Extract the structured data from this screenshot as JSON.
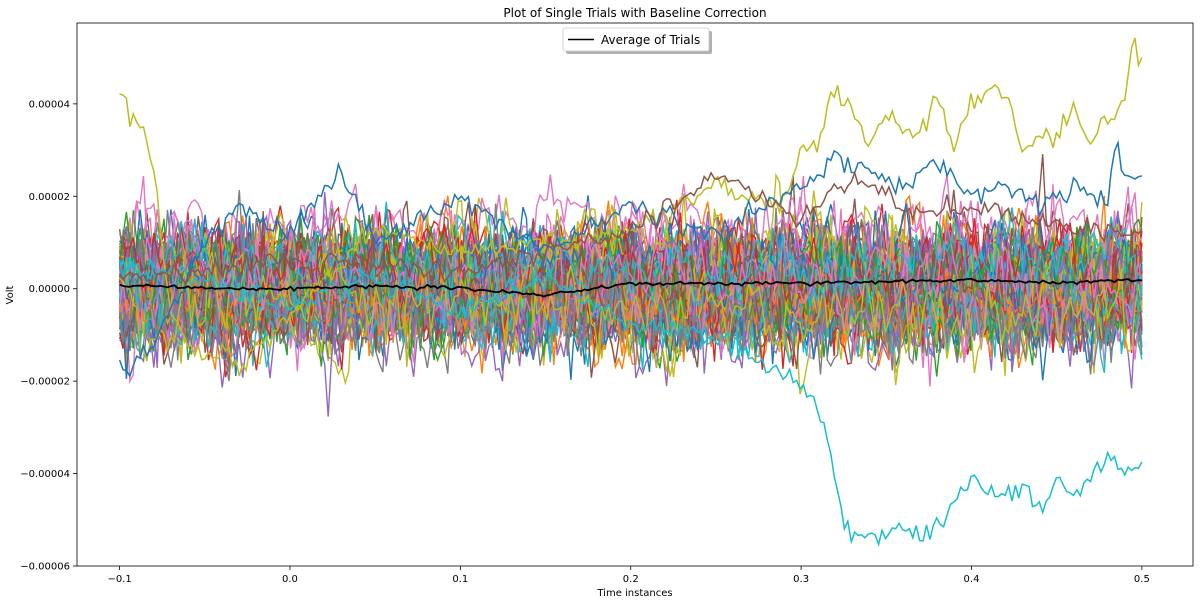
{
  "chart_data": {
    "type": "line",
    "title": "Plot of Single Trials with Baseline Correction",
    "xlabel": "Time instances",
    "ylabel": "Volt",
    "xlim": [
      -0.125,
      0.53
    ],
    "ylim": [
      -6e-05,
      5.75e-05
    ],
    "xticks": [
      -0.1,
      0.0,
      0.1,
      0.2,
      0.3,
      0.4,
      0.5
    ],
    "xtick_labels": [
      "−0.1",
      "0.0",
      "0.1",
      "0.2",
      "0.3",
      "0.4",
      "0.5"
    ],
    "yticks": [
      -6e-05,
      -4e-05,
      -2e-05,
      0.0,
      2e-05,
      4e-05
    ],
    "ytick_labels": [
      "−0.00006",
      "−0.00004",
      "−0.00002",
      "0.00000",
      "0.00002",
      "0.00004"
    ],
    "grid": false,
    "legend": {
      "placement": "upper center",
      "entries": [
        "Average of Trials"
      ]
    },
    "palette": [
      "#1f77b4",
      "#ff7f0e",
      "#2ca02c",
      "#d62728",
      "#9467bd",
      "#8c564b",
      "#e377c2",
      "#7f7f7f",
      "#bcbd22",
      "#17becf"
    ],
    "average_color": "#000000",
    "average_series": {
      "name": "Average of Trials",
      "x": [
        -0.1,
        -0.05,
        0.0,
        0.05,
        0.1,
        0.15,
        0.2,
        0.25,
        0.3,
        0.35,
        0.4,
        0.45,
        0.5
      ],
      "values": [
        8e-07,
        0.0,
        0.0,
        6e-07,
        2e-07,
        -1.5e-06,
        1.2e-06,
        1e-06,
        1.2e-06,
        1.5e-06,
        2e-06,
        1.2e-06,
        2e-06
      ]
    },
    "outlier_series": [
      {
        "color": "#bcbd22",
        "x": [
          -0.1,
          -0.095,
          -0.09,
          -0.085,
          -0.08,
          -0.075,
          -0.07,
          -0.06,
          -0.05,
          -0.04,
          -0.03,
          0.0,
          0.05,
          0.1,
          0.15,
          0.2,
          0.25,
          0.29,
          0.3,
          0.31,
          0.32,
          0.33,
          0.34,
          0.35,
          0.36,
          0.37,
          0.38,
          0.39,
          0.4,
          0.41,
          0.42,
          0.43,
          0.44,
          0.45,
          0.46,
          0.47,
          0.48,
          0.49,
          0.495,
          0.5
        ],
        "values": [
          4.2e-05,
          3.8e-05,
          3.6e-05,
          3.5e-05,
          2.5e-05,
          8e-06,
          -5e-06,
          -1.3e-05,
          -1.6e-05,
          -1.2e-05,
          -1.8e-05,
          -5e-06,
          1.2e-05,
          8e-06,
          1e-05,
          1.2e-05,
          2.2e-05,
          1.8e-05,
          3e-05,
          3.2e-05,
          4.3e-05,
          4e-05,
          3e-05,
          3.8e-05,
          3.5e-05,
          3.4e-05,
          4.2e-05,
          3e-05,
          4e-05,
          4.3e-05,
          4.3e-05,
          3e-05,
          3.3e-05,
          3.3e-05,
          3.8e-05,
          3.1e-05,
          3.7e-05,
          4.1e-05,
          5.2e-05,
          4.9e-05
        ]
      },
      {
        "color": "#17becf",
        "x": [
          -0.1,
          -0.05,
          0.0,
          0.05,
          0.1,
          0.15,
          0.2,
          0.25,
          0.27,
          0.28,
          0.29,
          0.3,
          0.31,
          0.32,
          0.325,
          0.33,
          0.34,
          0.35,
          0.36,
          0.37,
          0.38,
          0.39,
          0.4,
          0.41,
          0.42,
          0.43,
          0.44,
          0.45,
          0.46,
          0.47,
          0.48,
          0.49,
          0.5
        ],
        "values": [
          5e-06,
          2e-06,
          -4e-06,
          3e-06,
          -5e-06,
          2e-06,
          -8e-06,
          -1e-05,
          -1.5e-05,
          -1.7e-05,
          -1.9e-05,
          -2.1e-05,
          -2.5e-05,
          -4e-05,
          -5e-05,
          -5.2e-05,
          -5.4e-05,
          -5.3e-05,
          -5.1e-05,
          -5.5e-05,
          -5e-05,
          -4.6e-05,
          -4.1e-05,
          -4.4e-05,
          -4.5e-05,
          -4.3e-05,
          -4.8e-05,
          -4.2e-05,
          -4.6e-05,
          -4.1e-05,
          -3.6e-05,
          -4e-05,
          -3.8e-05
        ]
      },
      {
        "color": "#1f77b4",
        "x": [
          -0.1,
          -0.095,
          -0.09,
          -0.08,
          -0.07,
          -0.05,
          -0.03,
          0.0,
          0.03,
          0.05,
          0.1,
          0.15,
          0.2,
          0.25,
          0.3,
          0.32,
          0.34,
          0.36,
          0.38,
          0.4,
          0.42,
          0.44,
          0.46,
          0.48,
          0.485,
          0.49,
          0.5
        ],
        "values": [
          -1.5e-05,
          -1.8e-05,
          -1.5e-05,
          -1.2e-05,
          -5e-06,
          1e-05,
          1.8e-05,
          1.2e-05,
          2.6e-05,
          1e-05,
          2e-05,
          8e-06,
          1.8e-05,
          1.2e-05,
          2.2e-05,
          2.8e-05,
          2.5e-05,
          2.2e-05,
          2.8e-05,
          2e-05,
          2.2e-05,
          1.8e-05,
          2.2e-05,
          2e-05,
          3.2e-05,
          2.4e-05,
          2.4e-05
        ]
      },
      {
        "color": "#8c564b",
        "x": [
          -0.1,
          0.0,
          0.1,
          0.2,
          0.25,
          0.3,
          0.32,
          0.34,
          0.36,
          0.4,
          0.45,
          0.5
        ],
        "values": [
          2e-06,
          6e-06,
          4e-06,
          1.2e-05,
          2.5e-05,
          1.5e-05,
          2.2e-05,
          2.4e-05,
          1.6e-05,
          1.8e-05,
          1.4e-05,
          1.2e-05
        ]
      }
    ],
    "n_trials": 110
  }
}
